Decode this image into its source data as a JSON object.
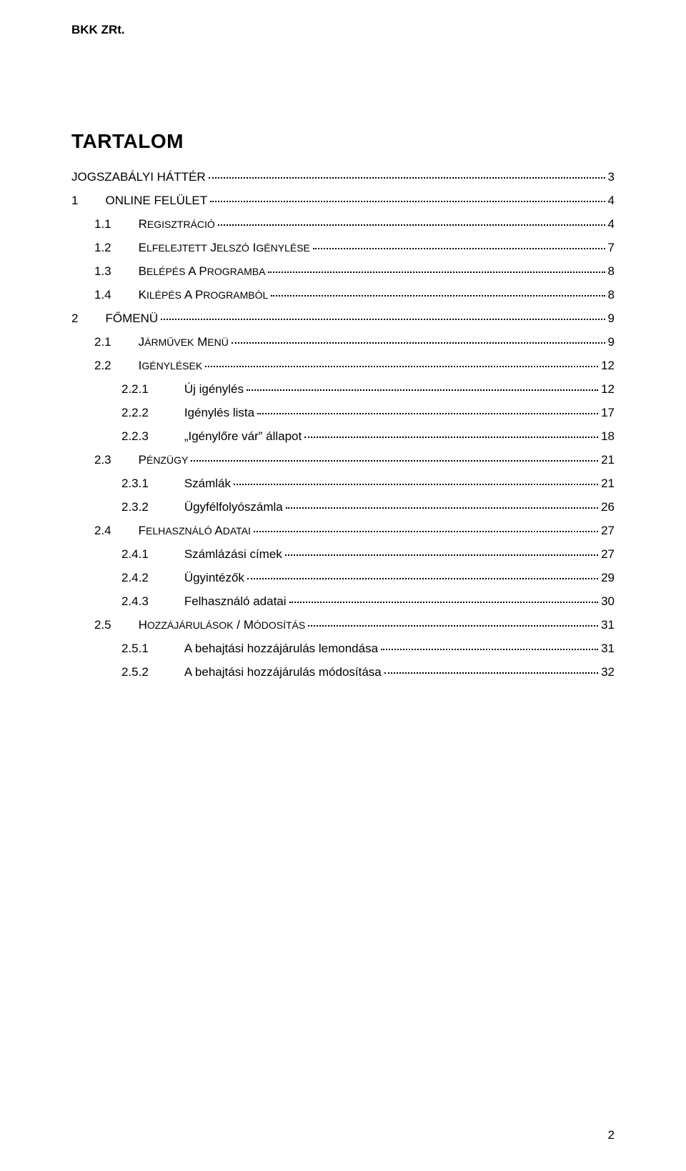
{
  "header": "BKK ZRt.",
  "title": "TARTALOM",
  "page_number": "2",
  "toc": [
    {
      "indent": 0,
      "num": "",
      "text": "JOGSZABÁLYI HÁTTÉR",
      "page": "3",
      "smallcaps": false
    },
    {
      "indent": 0,
      "num": "1",
      "text": "ONLINE FELÜLET",
      "page": "4",
      "smallcaps": false
    },
    {
      "indent": 1,
      "num": "1.1",
      "text": "REGISZTRÁCIÓ",
      "page": "4",
      "smallcaps": true
    },
    {
      "indent": 1,
      "num": "1.2",
      "text": "ELFELEJTETT JELSZÓ IGÉNYLÉSE",
      "page": "7",
      "smallcaps": true
    },
    {
      "indent": 1,
      "num": "1.3",
      "text": "BELÉPÉS A PROGRAMBA",
      "page": "8",
      "smallcaps": true
    },
    {
      "indent": 1,
      "num": "1.4",
      "text": "KILÉPÉS A PROGRAMBÓL",
      "page": "8",
      "smallcaps": true
    },
    {
      "indent": 0,
      "num": "2",
      "text": "FŐMENÜ",
      "page": "9",
      "smallcaps": false
    },
    {
      "indent": 1,
      "num": "2.1",
      "text": "JÁRMŰVEK MENÜ",
      "page": "9",
      "smallcaps": true
    },
    {
      "indent": 1,
      "num": "2.2",
      "text": "IGÉNYLÉSEK",
      "page": "12",
      "smallcaps": true
    },
    {
      "indent": 2,
      "num": "2.2.1",
      "text": "Új igénylés",
      "page": "12",
      "smallcaps": false
    },
    {
      "indent": 2,
      "num": "2.2.2",
      "text": "Igénylés lista",
      "page": "17",
      "smallcaps": false
    },
    {
      "indent": 2,
      "num": "2.2.3",
      "text": "„Igénylőre vár” állapot",
      "page": "18",
      "smallcaps": false
    },
    {
      "indent": 1,
      "num": "2.3",
      "text": "PÉNZÜGY",
      "page": "21",
      "smallcaps": true
    },
    {
      "indent": 2,
      "num": "2.3.1",
      "text": "Számlák",
      "page": "21",
      "smallcaps": false
    },
    {
      "indent": 2,
      "num": "2.3.2",
      "text": "Ügyfélfolyószámla",
      "page": "26",
      "smallcaps": false
    },
    {
      "indent": 1,
      "num": "2.4",
      "text": "FELHASZNÁLÓ ADATAI",
      "page": "27",
      "smallcaps": true
    },
    {
      "indent": 2,
      "num": "2.4.1",
      "text": "Számlázási címek",
      "page": "27",
      "smallcaps": false
    },
    {
      "indent": 2,
      "num": "2.4.2",
      "text": "Ügyintézők",
      "page": "29",
      "smallcaps": false
    },
    {
      "indent": 2,
      "num": "2.4.3",
      "text": "Felhasználó adatai",
      "page": "30",
      "smallcaps": false
    },
    {
      "indent": 1,
      "num": "2.5",
      "text": "HOZZÁJÁRULÁSOK / MÓDOSÍTÁS",
      "page": "31",
      "smallcaps": true
    },
    {
      "indent": 2,
      "num": "2.5.1",
      "text": "A behajtási hozzájárulás lemondása",
      "page": "31",
      "smallcaps": false
    },
    {
      "indent": 2,
      "num": "2.5.2",
      "text": "A behajtási hozzájárulás módosítása",
      "page": "32",
      "smallcaps": false
    }
  ]
}
